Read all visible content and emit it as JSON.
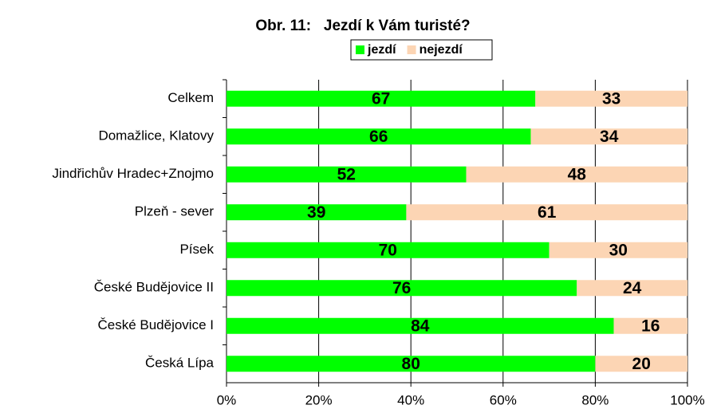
{
  "chart_data": {
    "type": "bar",
    "orientation": "horizontal",
    "stacked": true,
    "title": "Obr. 11:   Jezdí k Vám turisté?",
    "categories": [
      "Celkem",
      "Domažlice, Klatovy",
      "Jindřichův Hradec+Znojmo",
      "Plzeň - sever",
      "Písek",
      "České Budějovice II",
      "České Budějovice I",
      "Česká Lípa"
    ],
    "series": [
      {
        "name": "jezdí",
        "color": "#00ff00",
        "values": [
          67,
          66,
          52,
          39,
          70,
          76,
          84,
          80
        ]
      },
      {
        "name": "nejezdí",
        "color": "#fcd5b4",
        "values": [
          33,
          34,
          48,
          61,
          30,
          24,
          16,
          20
        ]
      }
    ],
    "xlim": [
      0,
      100
    ],
    "xticks": [
      {
        "value": 0,
        "label": "0%"
      },
      {
        "value": 20,
        "label": "20%"
      },
      {
        "value": 40,
        "label": "40%"
      },
      {
        "value": 60,
        "label": "60%"
      },
      {
        "value": 80,
        "label": "80%"
      },
      {
        "value": 100,
        "label": "100%"
      }
    ],
    "grid": true,
    "legend": "top"
  }
}
